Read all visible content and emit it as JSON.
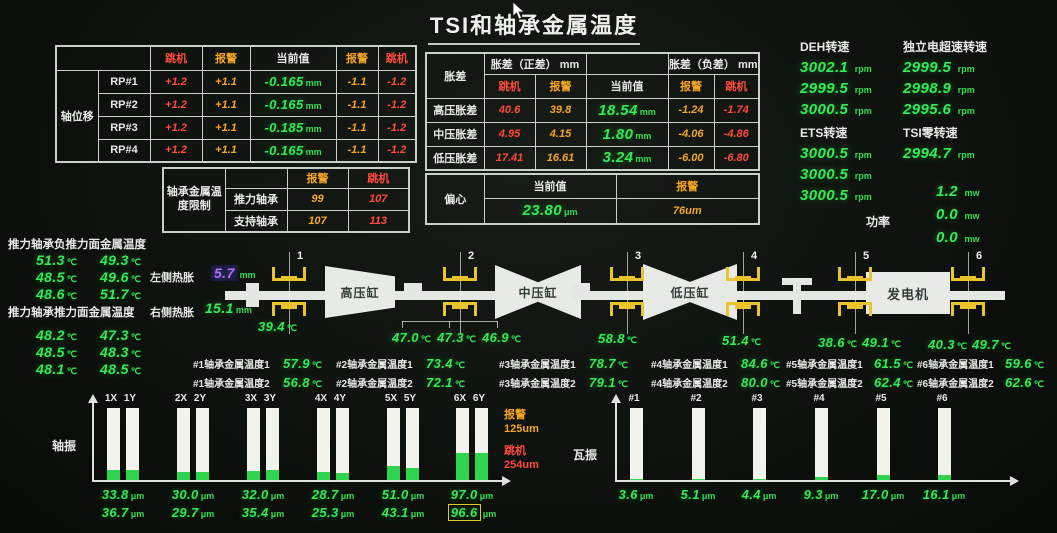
{
  "title": "TSI和轴承金属温度",
  "terms": {
    "trip": "跳机",
    "alarm": "报警",
    "current": "当前值"
  },
  "units": {
    "mm": "mm",
    "micron": "μm",
    "rpm": "rpm",
    "power": "mw",
    "temp": "℃"
  },
  "colors": {
    "green": "#35e957",
    "red": "#ff4a3c",
    "amber": "#f5a623",
    "purple": "#b26bff",
    "yellow": "#e9c42d"
  },
  "axial": {
    "group": "轴位移",
    "rows": [
      {
        "name": "RP#1",
        "trip_hi": "+1.2",
        "alarm_hi": "+1.1",
        "value": "-0.165",
        "alarm_lo": "-1.1",
        "trip_lo": "-1.2"
      },
      {
        "name": "RP#2",
        "trip_hi": "+1.2",
        "alarm_hi": "+1.1",
        "value": "-0.165",
        "alarm_lo": "-1.1",
        "trip_lo": "-1.2"
      },
      {
        "name": "RP#3",
        "trip_hi": "+1.2",
        "alarm_hi": "+1.1",
        "value": "-0.185",
        "alarm_lo": "-1.1",
        "trip_lo": "-1.2"
      },
      {
        "name": "RP#4",
        "trip_hi": "+1.2",
        "alarm_hi": "+1.1",
        "value": "-0.165",
        "alarm_lo": "-1.1",
        "trip_lo": "-1.2"
      }
    ]
  },
  "limits": {
    "group": "轴承金属温度限制",
    "rows": [
      {
        "name": "推力轴承",
        "alarm": "99",
        "trip": "107"
      },
      {
        "name": "支持轴承",
        "alarm": "107",
        "trip": "113"
      }
    ]
  },
  "expansion": {
    "group": "胀差",
    "pos_header": "胀差（正差） mm",
    "neg_header": "胀差（负差） mm",
    "rows": [
      {
        "name": "高压胀差",
        "trip_hi": "40.6",
        "alarm_hi": "39.8",
        "value": "18.54",
        "alarm_lo": "-1.24",
        "trip_lo": "-1.74"
      },
      {
        "name": "中压胀差",
        "trip_hi": "4.95",
        "alarm_hi": "4.15",
        "value": "1.80",
        "alarm_lo": "-4.06",
        "trip_lo": "-4.86"
      },
      {
        "name": "低压胀差",
        "trip_hi": "17.41",
        "alarm_hi": "16.61",
        "value": "3.24",
        "alarm_lo": "-6.00",
        "trip_lo": "-6.80"
      }
    ]
  },
  "eccentricity": {
    "group": "偏心",
    "value": "23.80",
    "alarm": "76um"
  },
  "speeds": {
    "deh": {
      "label": "DEH转速",
      "values": [
        "3002.1",
        "2999.5",
        "3000.5"
      ]
    },
    "overspeed": {
      "label": "独立电超速转速",
      "values": [
        "2999.5",
        "2998.9",
        "2995.6"
      ]
    },
    "ets": {
      "label": "ETS转速",
      "values": [
        "3000.5",
        "3000.5",
        "3000.5"
      ]
    },
    "tsi_zero": {
      "label": "TSI零转速",
      "values": [
        "2994.7"
      ]
    }
  },
  "power": {
    "label": "功率",
    "values": [
      "1.2",
      "0.0",
      "0.0"
    ]
  },
  "thrust_neg": {
    "label": "推力轴承负推力面金属温度",
    "values": [
      [
        "51.3",
        "49.3"
      ],
      [
        "48.5",
        "49.6"
      ],
      [
        "48.6",
        "51.7"
      ]
    ]
  },
  "thrust_pos": {
    "label": "推力轴承推力面金属温度",
    "values": [
      [
        "48.2",
        "47.3"
      ],
      [
        "48.5",
        "48.3"
      ],
      [
        "48.1",
        "48.5"
      ]
    ]
  },
  "heat_expansion": {
    "left_label": "左侧热胀",
    "left_value": "5.7",
    "right_label": "右侧热胀",
    "right_value": "15.1"
  },
  "diagram": {
    "hp": "高压缸",
    "ip": "中压缸",
    "lp": "低压缸",
    "generator": "发电机",
    "bearing_numbers": [
      "1",
      "2",
      "3",
      "4",
      "5",
      "6"
    ],
    "temps": {
      "b1": [
        "39.4"
      ],
      "b2": [
        "47.0",
        "47.3",
        "46.9"
      ],
      "b3": [
        "58.8"
      ],
      "b4": [
        "51.4"
      ],
      "b5": [
        "38.6",
        "49.1"
      ],
      "b6": [
        "40.3",
        "49.7"
      ]
    }
  },
  "bearing_metal": {
    "items": [
      {
        "label": "#1轴承金属温度1",
        "value": "57.9"
      },
      {
        "label": "#1轴承金属温度2",
        "value": "56.8"
      },
      {
        "label": "#2轴承金属温度1",
        "value": "73.4"
      },
      {
        "label": "#2轴承金属温度2",
        "value": "72.1"
      },
      {
        "label": "#3轴承金属温度1",
        "value": "78.7"
      },
      {
        "label": "#3轴承金属温度2",
        "value": "79.1"
      },
      {
        "label": "#4轴承金属温度1",
        "value": "84.6"
      },
      {
        "label": "#4轴承金属温度2",
        "value": "80.0"
      },
      {
        "label": "#5轴承金属温度1",
        "value": "61.5"
      },
      {
        "label": "#5轴承金属温度2",
        "value": "62.4"
      },
      {
        "label": "#6轴承金属温度1",
        "value": "59.6"
      },
      {
        "label": "#6轴承金属温度2",
        "value": "62.6"
      }
    ]
  },
  "chart_data": [
    {
      "type": "bar",
      "title": "轴振",
      "categories": [
        "1X",
        "1Y",
        "2X",
        "2Y",
        "3X",
        "3Y",
        "4X",
        "4Y",
        "5X",
        "5Y",
        "6X",
        "6Y"
      ],
      "values": [
        "33.8",
        "36.7",
        "30.0",
        "29.7",
        "32.0",
        "35.4",
        "28.7",
        "25.3",
        "51.0",
        "43.1",
        "97.0",
        "96.6"
      ],
      "unit": "μm",
      "ylim": [
        0,
        254
      ],
      "scale_max": 254,
      "alarm_label": "报警",
      "alarm_value": "125um",
      "trip_label": "跳机",
      "trip_value": "254um",
      "highlight_category": "6Y"
    },
    {
      "type": "bar",
      "title": "瓦振",
      "categories": [
        "#1",
        "#2",
        "#3",
        "#4",
        "#5",
        "#6"
      ],
      "values": [
        "3.6",
        "5.1",
        "4.4",
        "9.3",
        "17.0",
        "16.1"
      ],
      "unit": "μm",
      "ylim": [
        0,
        254
      ],
      "scale_max": 254
    }
  ]
}
